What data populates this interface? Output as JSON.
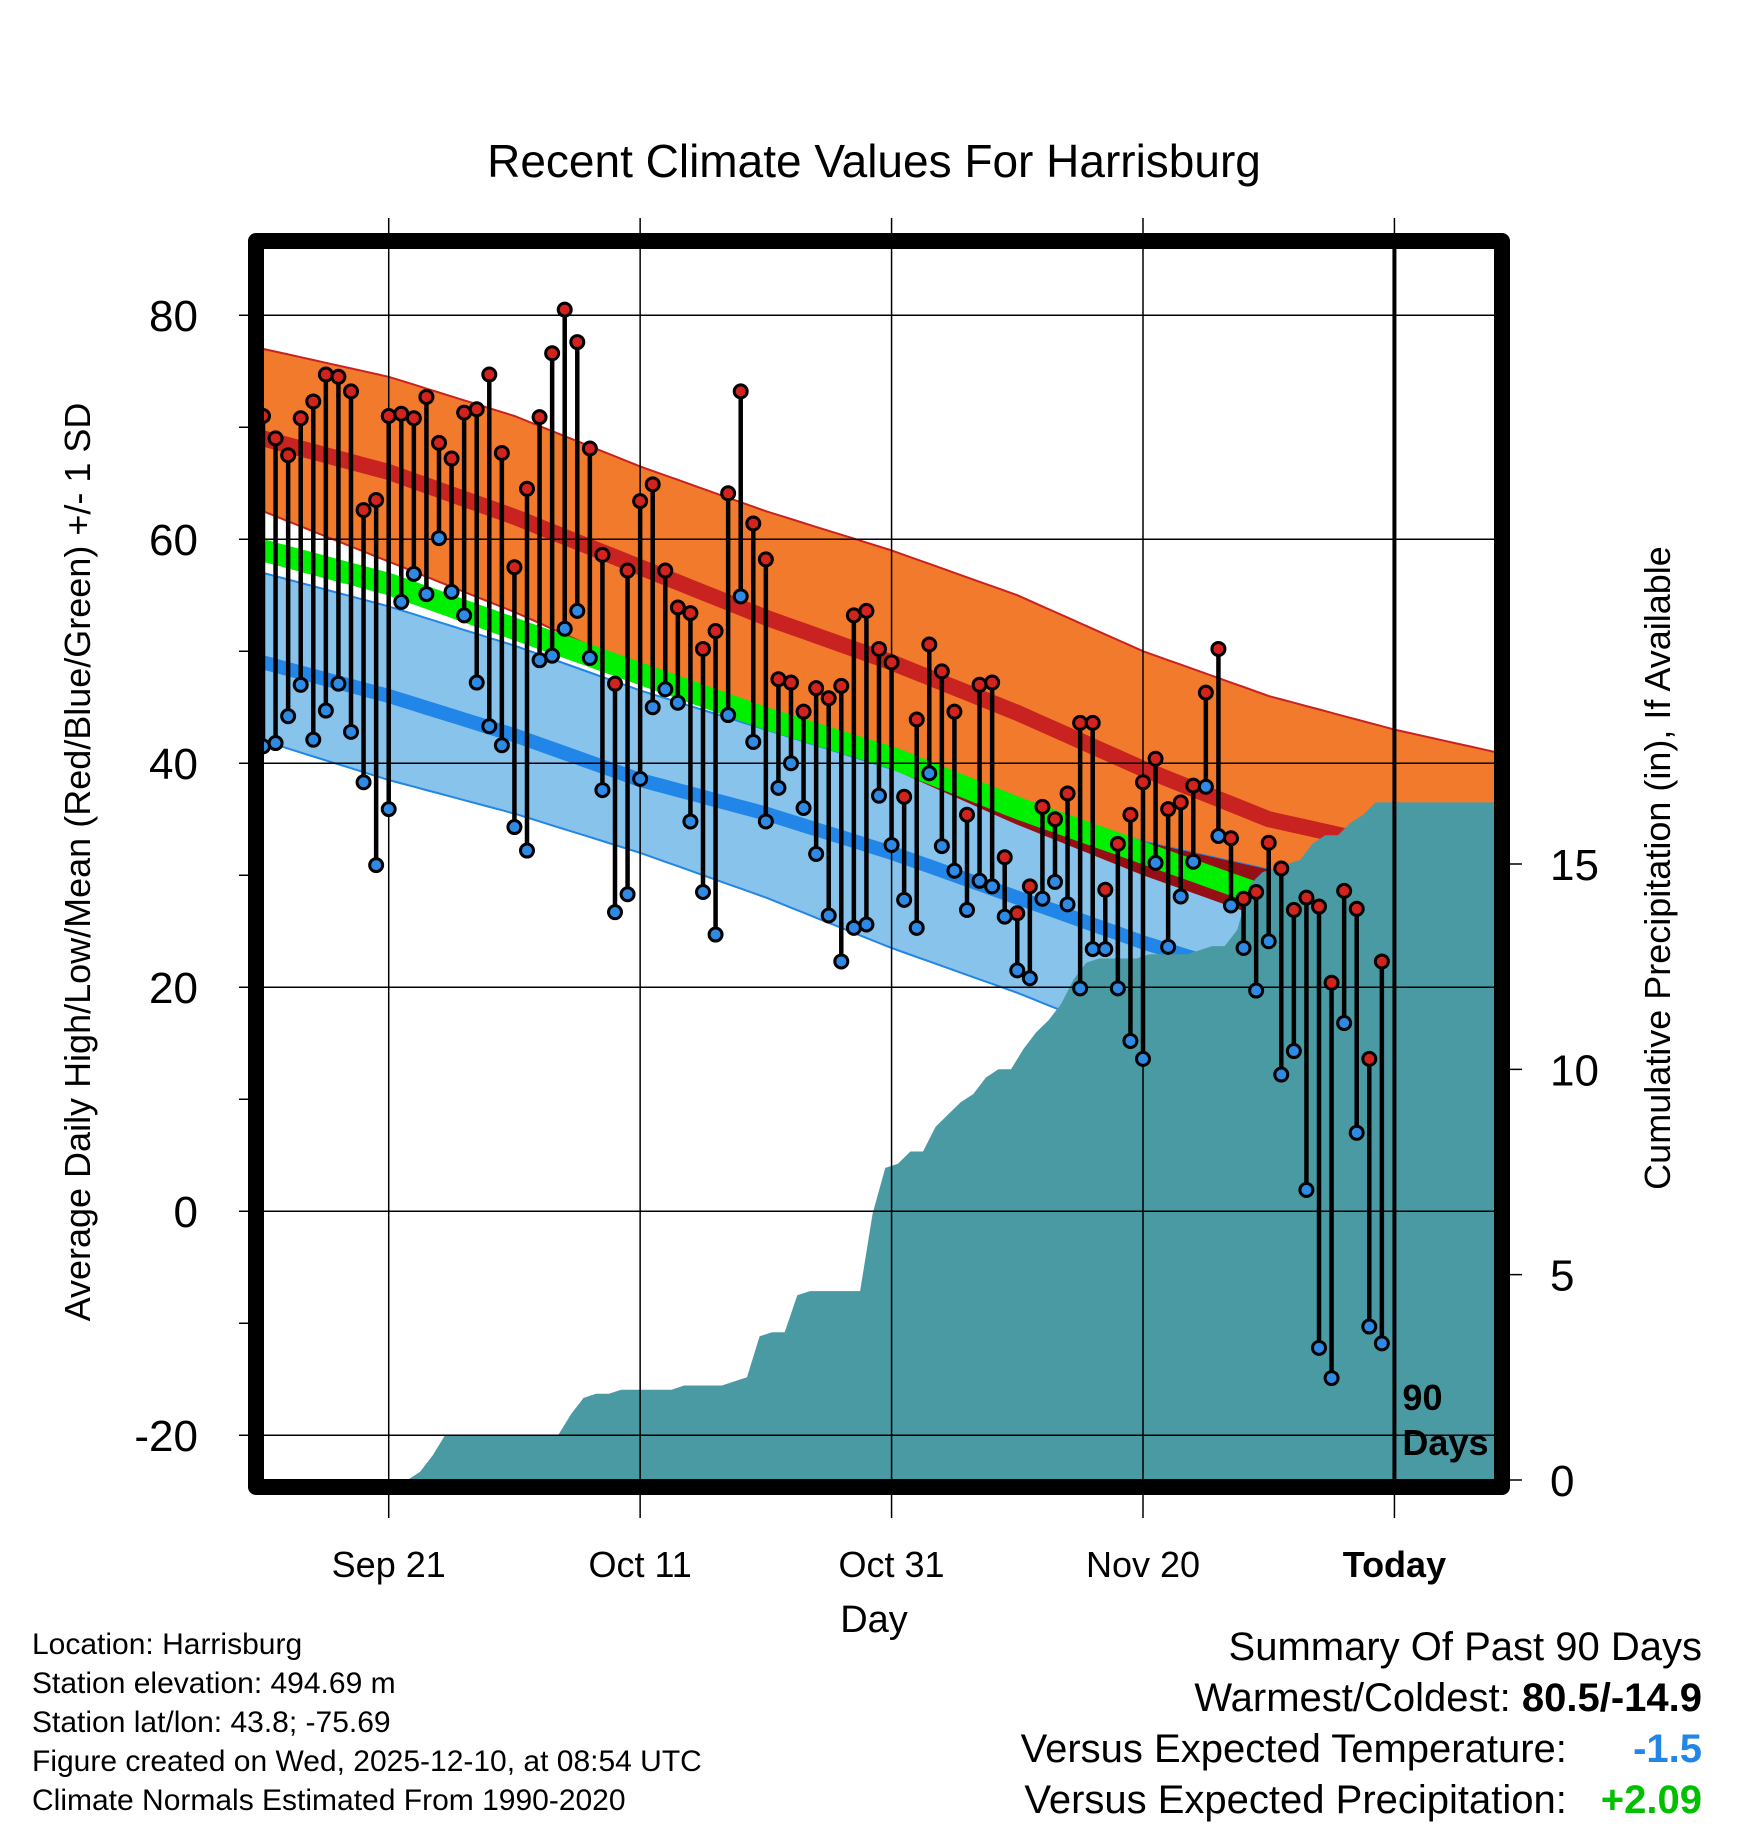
{
  "colors": {
    "high_band": "#f27a2c",
    "high_mean_line": "#c82320",
    "overlap_band": "#960f14",
    "low_band": "#87c3ea",
    "low_mean_line": "#2186e8",
    "mean_line": "#00f000",
    "precip_fill": "#4a9aa4",
    "high_marker": "#d2231e",
    "low_marker": "#2e8ae5",
    "temp_anomaly": "#2186e8",
    "precip_anomaly": "#00c000"
  },
  "chart_data": {
    "type": "area",
    "title": "Recent Climate Values For Harrisburg",
    "xlabel": "Day",
    "ylabel": "Average Daily High/Low/Mean (Red/Blue/Green) +/- 1 SD",
    "y2label": "Cumulative Precipitation (in), If Available",
    "x_range": [
      -89,
      9
    ],
    "ylim": [
      -24,
      86
    ],
    "y2lim": [
      0,
      30
    ],
    "x_ticks": [
      {
        "day": -79,
        "label": "Sep 21"
      },
      {
        "day": -59,
        "label": "Oct 11"
      },
      {
        "day": -39,
        "label": "Oct 31"
      },
      {
        "day": -19,
        "label": "Nov 20"
      },
      {
        "day": 1,
        "label": "Today"
      }
    ],
    "y_ticks": [
      -20,
      0,
      20,
      40,
      60,
      80
    ],
    "y2_ticks": [
      0,
      5,
      10,
      15
    ],
    "today_marker_day": 1,
    "today_label": "90 Days",
    "normals": {
      "days": [
        -89,
        -79,
        -69,
        -59,
        -49,
        -39,
        -29,
        -19,
        -9,
        1,
        9
      ],
      "high_mean": [
        69.0,
        66.0,
        62.0,
        57.5,
        53.0,
        49.0,
        44.5,
        39.5,
        35.0,
        32.5,
        30.5
      ],
      "high_upper": [
        77.0,
        74.5,
        71.0,
        66.5,
        62.5,
        59.0,
        55.0,
        50.0,
        46.0,
        43.0,
        41.0
      ],
      "high_lower": [
        62.5,
        58.0,
        53.5,
        48.5,
        44.0,
        39.5,
        34.5,
        30.0,
        26.0,
        22.5,
        20.0
      ],
      "low_mean": [
        49.0,
        46.0,
        42.5,
        38.5,
        35.5,
        32.0,
        28.0,
        24.0,
        20.5,
        17.5,
        15.0
      ],
      "low_upper": [
        57.0,
        54.0,
        50.5,
        46.5,
        43.0,
        39.5,
        36.5,
        33.0,
        30.5,
        28.0,
        25.5
      ],
      "low_lower": [
        42.0,
        38.5,
        35.5,
        32.0,
        28.0,
        23.5,
        19.5,
        15.0,
        10.5,
        6.5,
        3.5
      ],
      "daily_mean": [
        59.0,
        56.0,
        52.0,
        48.0,
        44.0,
        40.5,
        36.0,
        32.0,
        28.0,
        25.0,
        22.5
      ]
    },
    "daily_high": [
      71.0,
      69.0,
      67.5,
      70.8,
      72.3,
      74.7,
      74.5,
      73.2,
      62.6,
      63.5,
      71.0,
      71.2,
      70.8,
      72.7,
      68.6,
      67.2,
      71.3,
      71.6,
      74.7,
      67.7,
      57.5,
      64.5,
      70.9,
      76.6,
      80.5,
      77.6,
      68.1,
      58.6,
      47.1,
      57.2,
      63.4,
      64.9,
      57.2,
      53.9,
      53.4,
      50.2,
      51.8,
      64.1,
      73.2,
      61.4,
      58.2,
      47.5,
      47.2,
      44.6,
      46.7,
      45.8,
      46.9,
      53.2,
      53.6,
      50.2,
      49.0,
      37.0,
      43.9,
      50.6,
      48.2,
      44.6,
      35.4,
      47.0,
      47.2,
      31.6,
      26.6,
      29.0,
      36.1,
      35.0,
      37.3,
      43.6,
      43.6,
      28.7,
      32.8,
      35.4,
      38.3,
      40.4,
      35.9,
      36.5,
      38.0,
      46.3,
      50.2,
      33.3,
      27.9,
      28.5,
      32.9,
      30.6,
      26.9,
      28.0,
      27.2,
      20.4,
      28.6,
      27.0,
      13.6,
      22.3
    ],
    "daily_low": [
      41.5,
      41.8,
      44.2,
      47.0,
      42.1,
      44.7,
      47.1,
      42.8,
      38.3,
      30.9,
      35.9,
      54.4,
      56.9,
      55.1,
      60.1,
      55.3,
      53.2,
      47.2,
      43.3,
      41.6,
      34.3,
      32.2,
      49.2,
      49.6,
      52.0,
      53.6,
      49.4,
      37.6,
      26.7,
      28.3,
      38.6,
      45.0,
      46.6,
      45.4,
      34.8,
      28.5,
      24.7,
      44.3,
      54.9,
      41.9,
      34.8,
      37.8,
      40.0,
      36.0,
      31.9,
      26.4,
      22.3,
      25.3,
      25.6,
      37.1,
      32.7,
      27.8,
      25.3,
      39.1,
      32.6,
      30.4,
      26.9,
      29.5,
      29.0,
      26.3,
      21.5,
      20.8,
      27.9,
      29.4,
      27.4,
      19.9,
      23.4,
      23.4,
      19.9,
      15.2,
      13.6,
      31.1,
      23.6,
      28.1,
      31.2,
      37.9,
      33.5,
      27.3,
      23.5,
      19.7,
      24.1,
      12.2,
      14.3,
      1.9,
      -12.2,
      -14.9,
      16.8,
      7.0,
      -10.3,
      -11.8
    ],
    "cum_precip_days": [
      -101.5,
      -77.5,
      -76.5,
      -75.5,
      -74.5,
      -73.5,
      -72.5,
      -71.5,
      -70.5,
      -69.5,
      -68.5,
      -67.5,
      -66.5,
      -65.5,
      -64.5,
      -63.5,
      -62.5,
      -61.5,
      -60.5,
      -59.5,
      -58.5,
      -57.5,
      -56.5,
      -55.5,
      -54.5,
      -53.5,
      -52.5,
      -51.5,
      -50.5,
      -49.5,
      -48.5,
      -47.5,
      -46.5,
      -45.5,
      -44.5,
      -43.5,
      -42.5,
      -41.5,
      -40.5,
      -39.5,
      -38.5,
      -37.5,
      -36.5,
      -35.5,
      -34.5,
      -33.5,
      -32.5,
      -31.5,
      -30.5,
      -29.5,
      -28.5,
      -27.5,
      -26.5,
      -25.5,
      -24.5,
      -23.5,
      -22.5,
      -21.5,
      -20.5,
      -19.5,
      -18.5,
      -17.5,
      -16.5,
      -15.5,
      -14.5,
      -13.5,
      -12.5,
      -11.5,
      -10.5,
      -9.5,
      -8.5,
      -7.5,
      -6.5,
      -5.5,
      -4.5,
      -3.5,
      -2.5,
      -1.5,
      -0.5,
      9.0
    ],
    "cum_precip": [
      0,
      0,
      0.2,
      0.6,
      1.1,
      1.1,
      1.1,
      1.1,
      1.1,
      1.1,
      1.1,
      1.1,
      1.1,
      1.1,
      1.6,
      2.0,
      2.1,
      2.1,
      2.2,
      2.2,
      2.2,
      2.2,
      2.2,
      2.3,
      2.3,
      2.3,
      2.3,
      2.4,
      2.5,
      3.5,
      3.6,
      3.6,
      4.5,
      4.6,
      4.6,
      4.6,
      4.6,
      4.6,
      6.5,
      7.6,
      7.7,
      8.0,
      8.0,
      8.6,
      8.9,
      9.2,
      9.4,
      9.8,
      10.0,
      10.0,
      10.5,
      10.9,
      11.2,
      11.6,
      12.2,
      12.6,
      12.7,
      12.7,
      12.7,
      12.7,
      12.8,
      12.8,
      12.8,
      12.8,
      12.9,
      13.0,
      13.0,
      13.4,
      14.5,
      14.8,
      14.9,
      15.0,
      15.1,
      15.5,
      15.7,
      15.7,
      16.0,
      16.2,
      16.5,
      16.5
    ],
    "summary": {
      "title": "Summary Of Past 90 Days",
      "warmest_coldest_label": "Warmest/Coldest:",
      "warmest_coldest_value": "80.5/-14.9",
      "temp_label": "Versus Expected Temperature:",
      "temp_value": "-1.5",
      "precip_label": "Versus Expected Precipitation:",
      "precip_value": "+2.09"
    }
  },
  "info": {
    "location": "Location: Harrisburg",
    "elevation": "Station elevation: 494.69 m",
    "latlon": "Station lat/lon: 43.8; -75.69",
    "created": "Figure created on Wed, 2025-12-10, at 08:54 UTC",
    "normals": "Climate Normals Estimated From 1990-2020"
  }
}
